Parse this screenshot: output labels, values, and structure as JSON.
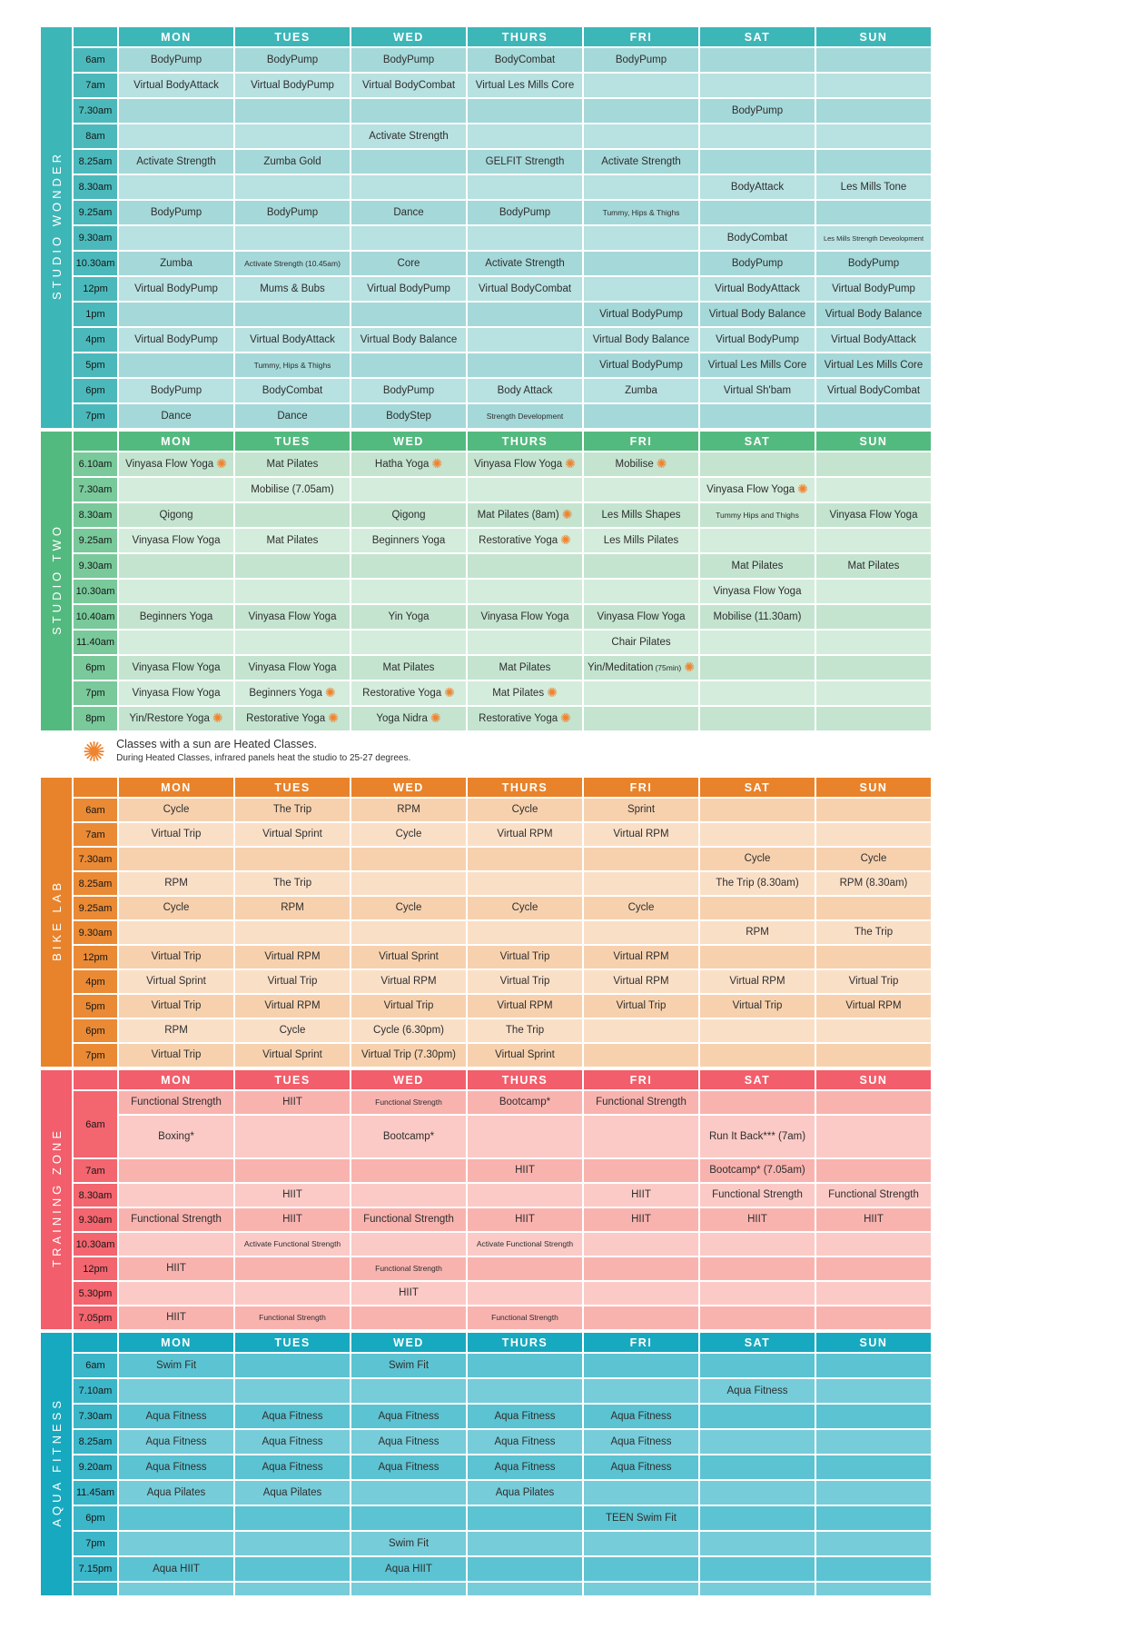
{
  "icons": {
    "sun": "✺"
  },
  "colors": {
    "sun": "#ee8430",
    "page_bg": "#ffffff",
    "cell_text": "#2e2e2e",
    "header_text": "#ffffff"
  },
  "note": {
    "line1": "Classes with a sun are Heated Classes.",
    "line2": "During Heated Classes, infrared panels heat the studio to 25-27 degrees."
  },
  "days": [
    "MON",
    "TUES",
    "WED",
    "THURS",
    "FRI",
    "SAT",
    "SUN"
  ],
  "sections": [
    {
      "id": "studio-wonder",
      "label": "STUDIO WONDER",
      "colors": {
        "accent": "#3db6b8",
        "time": "#4bb9bb",
        "row_dark": "#a5d8d9",
        "row_light": "#b8e1e1"
      },
      "rows": [
        {
          "time": "6am",
          "cells": [
            "BodyPump",
            "BodyPump",
            "BodyPump",
            "BodyCombat",
            "BodyPump",
            "",
            ""
          ]
        },
        {
          "time": "7am",
          "cells": [
            "Virtual BodyAttack",
            "Virtual BodyPump",
            "Virtual BodyCombat",
            "Virtual Les Mills Core",
            "",
            "",
            ""
          ]
        },
        {
          "time": "7.30am",
          "cells": [
            "",
            "",
            "",
            "",
            "",
            "BodyPump",
            ""
          ]
        },
        {
          "time": "8am",
          "cells": [
            "",
            "",
            "Activate Strength",
            "",
            "",
            "",
            ""
          ]
        },
        {
          "time": "8.25am",
          "cells": [
            "Activate Strength",
            "Zumba Gold",
            "",
            "GELFIT Strength",
            "Activate Strength",
            "",
            ""
          ]
        },
        {
          "time": "8.30am",
          "cells": [
            "",
            "",
            "",
            "",
            "",
            "BodyAttack",
            "Les Mills Tone"
          ]
        },
        {
          "time": "9.25am",
          "cells": [
            "BodyPump",
            "BodyPump",
            "Dance",
            "BodyPump",
            {
              "t": "Tummy, Hips & Thighs",
              "small": true
            },
            "",
            ""
          ]
        },
        {
          "time": "9.30am",
          "cells": [
            "",
            "",
            "",
            "",
            "",
            "BodyCombat",
            {
              "t": "Les Mills Strength Deveolopment",
              "xs": true
            }
          ]
        },
        {
          "time": "10.30am",
          "cells": [
            "Zumba",
            {
              "t": "Activate Strength (10.45am)",
              "small": true
            },
            "Core",
            "Activate Strength",
            "",
            "BodyPump",
            "BodyPump"
          ]
        },
        {
          "time": "12pm",
          "cells": [
            "Virtual BodyPump",
            "Mums & Bubs",
            "Virtual BodyPump",
            "Virtual BodyCombat",
            "",
            "Virtual BodyAttack",
            "Virtual BodyPump"
          ]
        },
        {
          "time": "1pm",
          "cells": [
            "",
            "",
            "",
            "",
            "Virtual BodyPump",
            "Virtual Body Balance",
            "Virtual Body Balance"
          ]
        },
        {
          "time": "4pm",
          "cells": [
            "Virtual BodyPump",
            "Virtual BodyAttack",
            "Virtual Body Balance",
            "",
            "Virtual Body Balance",
            "Virtual BodyPump",
            "Virtual BodyAttack"
          ]
        },
        {
          "time": "5pm",
          "cells": [
            "",
            {
              "t": "Tummy, Hips & Thighs",
              "small": true
            },
            "",
            "",
            "Virtual BodyPump",
            "Virtual Les Mills Core",
            "Virtual Les Mills Core"
          ]
        },
        {
          "time": "6pm",
          "cells": [
            "BodyPump",
            "BodyCombat",
            "BodyPump",
            "Body Attack",
            "Zumba",
            "Virtual Sh'bam",
            "Virtual BodyCombat"
          ]
        },
        {
          "time": "7pm",
          "cells": [
            "Dance",
            "Dance",
            "BodyStep",
            {
              "t": "Strength Development",
              "small": true
            },
            "",
            "",
            ""
          ]
        }
      ]
    },
    {
      "id": "studio-two",
      "label": "STUDIO TWO",
      "colors": {
        "accent": "#53ba7f",
        "time": "#79c99b",
        "row_dark": "#c4e4d0",
        "row_light": "#d4ecdc"
      },
      "rows": [
        {
          "time": "6.10am",
          "cells": [
            {
              "t": "Vinyasa Flow Yoga",
              "sun": true
            },
            "Mat Pilates",
            {
              "t": "Hatha Yoga",
              "sun": true
            },
            {
              "t": "Vinyasa Flow Yoga",
              "sun": true
            },
            {
              "t": "Mobilise",
              "sun": true
            },
            "",
            ""
          ]
        },
        {
          "time": "7.30am",
          "cells": [
            "",
            "Mobilise (7.05am)",
            "",
            "",
            "",
            {
              "t": "Vinyasa Flow Yoga",
              "sun": true
            },
            ""
          ]
        },
        {
          "time": "8.30am",
          "cells": [
            "Qigong",
            "",
            "Qigong",
            {
              "t": "Mat Pilates (8am)",
              "sun": true
            },
            "Les Mills Shapes",
            {
              "t": "Tummy Hips and Thighs",
              "small": true
            },
            "Vinyasa Flow Yoga"
          ]
        },
        {
          "time": "9.25am",
          "cells": [
            "Vinyasa Flow Yoga",
            "Mat Pilates",
            "Beginners Yoga",
            {
              "t": "Restorative Yoga",
              "sun": true
            },
            "Les Mills Pilates",
            "",
            ""
          ]
        },
        {
          "time": "9.30am",
          "cells": [
            "",
            "",
            "",
            "",
            "",
            "Mat Pilates",
            "Mat Pilates"
          ]
        },
        {
          "time": "10.30am",
          "cells": [
            "",
            "",
            "",
            "",
            "",
            "Vinyasa Flow Yoga",
            ""
          ]
        },
        {
          "time": "10.40am",
          "cells": [
            "Beginners Yoga",
            "Vinyasa Flow Yoga",
            "Yin Yoga",
            "Vinyasa Flow Yoga",
            "Vinyasa Flow Yoga",
            "Mobilise (11.30am)",
            ""
          ]
        },
        {
          "time": "11.40am",
          "cells": [
            "",
            "",
            "",
            "",
            "Chair Pilates",
            "",
            ""
          ]
        },
        {
          "time": "6pm",
          "cells": [
            "Vinyasa Flow Yoga",
            "Vinyasa Flow Yoga",
            "Mat Pilates",
            "Mat Pilates",
            {
              "t": "Yin/Meditation",
              "t2": "(75min)",
              "sun": true
            },
            "",
            ""
          ]
        },
        {
          "time": "7pm",
          "cells": [
            "Vinyasa Flow Yoga",
            {
              "t": "Beginners Yoga",
              "sun": true
            },
            {
              "t": "Restorative Yoga",
              "sun": true
            },
            {
              "t": "Mat Pilates",
              "sun": true
            },
            "",
            "",
            ""
          ]
        },
        {
          "time": "8pm",
          "cells": [
            {
              "t": "Yin/Restore Yoga",
              "sun": true
            },
            {
              "t": "Restorative Yoga",
              "sun": true
            },
            {
              "t": "Yoga Nidra",
              "sun": true
            },
            {
              "t": "Restorative Yoga",
              "sun": true
            },
            "",
            "",
            ""
          ]
        }
      ]
    },
    {
      "id": "bike-lab",
      "label": "BIKE LAB",
      "colors": {
        "accent": "#e8832b",
        "time": "#ea8a35",
        "row_dark": "#f7d1ae",
        "row_light": "#fadfc7"
      },
      "rows": [
        {
          "time": "6am",
          "cells": [
            "Cycle",
            "The Trip",
            "RPM",
            "Cycle",
            "Sprint",
            "",
            ""
          ]
        },
        {
          "time": "7am",
          "cells": [
            "Virtual Trip",
            "Virtual Sprint",
            "Cycle",
            "Virtual RPM",
            "Virtual RPM",
            "",
            ""
          ]
        },
        {
          "time": "7.30am",
          "cells": [
            "",
            "",
            "",
            "",
            "",
            "Cycle",
            "Cycle"
          ]
        },
        {
          "time": "8.25am",
          "cells": [
            "RPM",
            "The Trip",
            "",
            "",
            "",
            "The Trip (8.30am)",
            "RPM (8.30am)"
          ]
        },
        {
          "time": "9.25am",
          "cells": [
            "Cycle",
            "RPM",
            "Cycle",
            "Cycle",
            "Cycle",
            "",
            ""
          ]
        },
        {
          "time": "9.30am",
          "cells": [
            "",
            "",
            "",
            "",
            "",
            "RPM",
            "The Trip"
          ]
        },
        {
          "time": "12pm",
          "cells": [
            "Virtual Trip",
            "Virtual RPM",
            "Virtual Sprint",
            "Virtual Trip",
            "Virtual RPM",
            "",
            ""
          ]
        },
        {
          "time": "4pm",
          "cells": [
            "Virtual Sprint",
            "Virtual Trip",
            "Virtual RPM",
            "Virtual Trip",
            "Virtual RPM",
            "Virtual RPM",
            "Virtual Trip"
          ]
        },
        {
          "time": "5pm",
          "cells": [
            "Virtual Trip",
            "Virtual RPM",
            "Virtual Trip",
            "Virtual RPM",
            "Virtual Trip",
            "Virtual Trip",
            "Virtual RPM"
          ]
        },
        {
          "time": "6pm",
          "cells": [
            "RPM",
            "Cycle",
            "Cycle (6.30pm)",
            "The Trip",
            "",
            "",
            ""
          ]
        },
        {
          "time": "7pm",
          "cells": [
            "Virtual Trip",
            "Virtual Sprint",
            "Virtual Trip (7.30pm)",
            "Virtual Sprint",
            "",
            "",
            ""
          ]
        }
      ]
    },
    {
      "id": "training-zone",
      "label": "TRAINING ZONE",
      "colors": {
        "accent": "#f25e6b",
        "time": "#f3656f",
        "row_dark": "#f9b3af",
        "row_light": "#fbcac6"
      },
      "rows": [
        {
          "time": "6am",
          "span": 2,
          "cells": [
            "Functional Strength",
            "HIIT",
            {
              "t": "Functional Strength",
              "small": true
            },
            "Bootcamp*",
            "Functional Strength",
            "",
            ""
          ]
        },
        {
          "time": null,
          "cells": [
            "Boxing*",
            "",
            "Bootcamp*",
            "",
            "",
            "Run It Back*** (7am)",
            ""
          ]
        },
        {
          "time": "7am",
          "cells": [
            "",
            "",
            "",
            "HIIT",
            "",
            "Bootcamp* (7.05am)",
            ""
          ]
        },
        {
          "time": "8.30am",
          "cells": [
            "",
            "HIIT",
            "",
            "",
            "HIIT",
            "Functional Strength",
            "Functional Strength"
          ]
        },
        {
          "time": "9.30am",
          "cells": [
            "Functional Strength",
            "HIIT",
            "Functional Strength",
            "HIIT",
            "HIIT",
            "HIIT",
            "HIIT"
          ]
        },
        {
          "time": "10.30am",
          "cells": [
            "",
            {
              "t": "Activate Functional Strength",
              "small": true
            },
            "",
            {
              "t": "Activate Functional Strength",
              "small": true
            },
            "",
            "",
            ""
          ]
        },
        {
          "time": "12pm",
          "cells": [
            "HIIT",
            "",
            {
              "t": "Functional Strength",
              "small": true
            },
            "",
            "",
            "",
            ""
          ]
        },
        {
          "time": "5.30pm",
          "cells": [
            "",
            "",
            "HIIT",
            "",
            "",
            "",
            ""
          ]
        },
        {
          "time": "7.05pm",
          "cells": [
            "HIIT",
            {
              "t": "Functional Strength",
              "small": true
            },
            "",
            {
              "t": "Functional Strength",
              "small": true
            },
            "",
            "",
            ""
          ]
        }
      ]
    },
    {
      "id": "aqua-fitness",
      "label": "AQUA FITNESS",
      "colors": {
        "accent": "#17a9bf",
        "time": "#3cb6c9",
        "row_dark": "#5cc3d2",
        "row_light": "#76ccd9"
      },
      "rows": [
        {
          "time": "6am",
          "cells": [
            "Swim Fit",
            "",
            "Swim Fit",
            "",
            "",
            "",
            ""
          ]
        },
        {
          "time": "7.10am",
          "cells": [
            "",
            "",
            "",
            "",
            "",
            "Aqua Fitness",
            ""
          ]
        },
        {
          "time": "7.30am",
          "cells": [
            "Aqua Fitness",
            "Aqua Fitness",
            "Aqua Fitness",
            "Aqua Fitness",
            "Aqua Fitness",
            "",
            ""
          ]
        },
        {
          "time": "8.25am",
          "cells": [
            "Aqua Fitness",
            "Aqua Fitness",
            "Aqua Fitness",
            "Aqua Fitness",
            "Aqua Fitness",
            "",
            ""
          ]
        },
        {
          "time": "9.20am",
          "cells": [
            "Aqua Fitness",
            "Aqua Fitness",
            "Aqua Fitness",
            "Aqua Fitness",
            "Aqua Fitness",
            "",
            ""
          ]
        },
        {
          "time": "11.45am",
          "cells": [
            "Aqua Pilates",
            "Aqua Pilates",
            "",
            "Aqua Pilates",
            "",
            "",
            ""
          ]
        },
        {
          "time": "6pm",
          "cells": [
            "",
            "",
            "",
            "",
            "TEEN Swim Fit",
            "",
            ""
          ]
        },
        {
          "time": "7pm",
          "cells": [
            "",
            "",
            "Swim Fit",
            "",
            "",
            "",
            ""
          ]
        },
        {
          "time": "7.15pm",
          "cells": [
            "Aqua HIIT",
            "",
            "Aqua HIIT",
            "",
            "",
            "",
            ""
          ]
        },
        {
          "time": "",
          "cells": [
            "",
            "",
            "",
            "",
            "",
            "",
            ""
          ]
        }
      ]
    }
  ]
}
